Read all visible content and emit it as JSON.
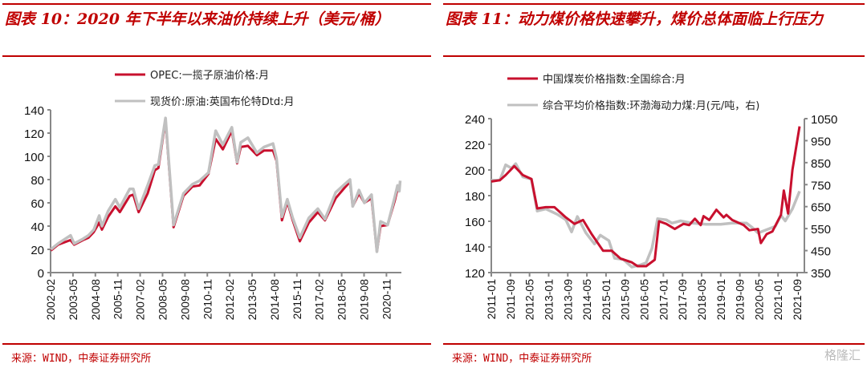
{
  "left": {
    "title": "图表 10：2020 年下半年以来油价持续上升（美元/桶）",
    "source": "来源：WIND，中泰证券研究所"
  },
  "right": {
    "title": "图表 11：动力煤价格快速攀升，煤价总体面临上行压力",
    "source": "来源：WIND，中泰证券研究所",
    "watermark": "格隆汇"
  },
  "colors": {
    "red": "#c8102e",
    "gray": "#c0c0c0",
    "accent": "#c00000"
  },
  "chart_data": [
    {
      "type": "line",
      "title": "2020 年下半年以来油价持续上升（美元/桶）",
      "ylim": [
        0,
        140
      ],
      "yticks": [
        0,
        20,
        40,
        60,
        80,
        100,
        120,
        140
      ],
      "xlim": [
        2002.083,
        2021.667
      ],
      "xticks": [
        "2002-02",
        "2003-05",
        "2004-08",
        "2005-11",
        "2007-02",
        "2008-05",
        "2009-08",
        "2010-11",
        "2012-02",
        "2013-05",
        "2014-08",
        "2015-11",
        "2017-02",
        "2018-05",
        "2019-08",
        "2020-11"
      ],
      "legend": [
        "OPEC:一揽子原油价格:月",
        "现货价:原油:英国布伦特Dtd:月"
      ],
      "series": [
        {
          "name": "OPEC:一揽子原油价格:月",
          "color": "red",
          "axis": "left",
          "points": [
            [
              2002.1,
              19
            ],
            [
              2002.5,
              24
            ],
            [
              2003.2,
              28
            ],
            [
              2003.4,
              24
            ],
            [
              2003.9,
              28
            ],
            [
              2004.2,
              30
            ],
            [
              2004.5,
              35
            ],
            [
              2004.8,
              43
            ],
            [
              2004.95,
              37
            ],
            [
              2005.3,
              48
            ],
            [
              2005.7,
              57
            ],
            [
              2005.95,
              52
            ],
            [
              2006.5,
              66
            ],
            [
              2006.7,
              67
            ],
            [
              2007.0,
              52
            ],
            [
              2007.5,
              68
            ],
            [
              2007.9,
              88
            ],
            [
              2008.1,
              90
            ],
            [
              2008.5,
              131
            ],
            [
              2008.95,
              39
            ],
            [
              2009.5,
              66
            ],
            [
              2010.0,
              74
            ],
            [
              2010.4,
              75
            ],
            [
              2010.9,
              85
            ],
            [
              2011.3,
              115
            ],
            [
              2011.7,
              106
            ],
            [
              2012.2,
              122
            ],
            [
              2012.5,
              94
            ],
            [
              2012.7,
              108
            ],
            [
              2013.1,
              109
            ],
            [
              2013.6,
              101
            ],
            [
              2014.0,
              105
            ],
            [
              2014.5,
              105
            ],
            [
              2014.7,
              96
            ],
            [
              2015.0,
              45
            ],
            [
              2015.3,
              61
            ],
            [
              2015.6,
              45
            ],
            [
              2016.0,
              27
            ],
            [
              2016.5,
              43
            ],
            [
              2017.0,
              52
            ],
            [
              2017.4,
              45
            ],
            [
              2018.0,
              64
            ],
            [
              2018.5,
              73
            ],
            [
              2018.8,
              78
            ],
            [
              2018.95,
              57
            ],
            [
              2019.3,
              68
            ],
            [
              2019.6,
              60
            ],
            [
              2020.0,
              64
            ],
            [
              2020.3,
              18
            ],
            [
              2020.5,
              40
            ],
            [
              2020.9,
              41
            ],
            [
              2021.3,
              62
            ],
            [
              2021.45,
              72
            ],
            [
              2021.55,
              71
            ]
          ]
        },
        {
          "name": "现货价:原油:英国布伦特Dtd:月",
          "color": "gray",
          "axis": "left",
          "points": [
            [
              2002.1,
              20
            ],
            [
              2002.5,
              25
            ],
            [
              2003.2,
              32
            ],
            [
              2003.4,
              25
            ],
            [
              2003.9,
              29
            ],
            [
              2004.2,
              32
            ],
            [
              2004.5,
              37
            ],
            [
              2004.8,
              49
            ],
            [
              2004.95,
              40
            ],
            [
              2005.3,
              53
            ],
            [
              2005.7,
              63
            ],
            [
              2005.95,
              56
            ],
            [
              2006.5,
              72
            ],
            [
              2006.7,
              72
            ],
            [
              2007.0,
              55
            ],
            [
              2007.5,
              75
            ],
            [
              2007.9,
              92
            ],
            [
              2008.1,
              93
            ],
            [
              2008.5,
              133
            ],
            [
              2008.95,
              41
            ],
            [
              2009.5,
              68
            ],
            [
              2010.0,
              76
            ],
            [
              2010.4,
              79
            ],
            [
              2010.9,
              86
            ],
            [
              2011.3,
              122
            ],
            [
              2011.7,
              110
            ],
            [
              2012.2,
              125
            ],
            [
              2012.5,
              95
            ],
            [
              2012.7,
              112
            ],
            [
              2013.1,
              116
            ],
            [
              2013.6,
              103
            ],
            [
              2014.0,
              108
            ],
            [
              2014.5,
              111
            ],
            [
              2014.7,
              98
            ],
            [
              2015.0,
              48
            ],
            [
              2015.3,
              63
            ],
            [
              2015.6,
              47
            ],
            [
              2016.0,
              30
            ],
            [
              2016.5,
              47
            ],
            [
              2017.0,
              55
            ],
            [
              2017.4,
              46
            ],
            [
              2018.0,
              69
            ],
            [
              2018.5,
              76
            ],
            [
              2018.8,
              80
            ],
            [
              2018.95,
              57
            ],
            [
              2019.3,
              71
            ],
            [
              2019.6,
              60
            ],
            [
              2020.0,
              67
            ],
            [
              2020.3,
              18
            ],
            [
              2020.5,
              44
            ],
            [
              2020.9,
              41
            ],
            [
              2021.3,
              65
            ],
            [
              2021.45,
              75
            ],
            [
              2021.55,
              70
            ],
            [
              2021.6,
              79
            ]
          ]
        }
      ]
    },
    {
      "type": "line",
      "title": "动力煤价格快速攀升，煤价总体面临上行压力",
      "ylim": [
        120,
        240
      ],
      "yticks": [
        120,
        140,
        160,
        180,
        200,
        220,
        240
      ],
      "y2lim": [
        350,
        1050
      ],
      "y2ticks": [
        350,
        450,
        550,
        650,
        750,
        850,
        950,
        1050
      ],
      "xlim": [
        2011.0,
        2021.917
      ],
      "xticks": [
        "2011-01",
        "2011-09",
        "2012-05",
        "2013-01",
        "2013-09",
        "2014-05",
        "2015-01",
        "2015-09",
        "2016-05",
        "2017-01",
        "2017-09",
        "2018-05",
        "2019-01",
        "2019-09",
        "2020-05",
        "2021-01",
        "2021-09"
      ],
      "legend": [
        "中国煤炭价格指数:全国综合:月",
        "综合平均价格指数:环渤海动力煤:月(元/吨，右)"
      ],
      "series": [
        {
          "name": "中国煤炭价格指数:全国综合:月",
          "color": "red",
          "axis": "left",
          "points": [
            [
              2011.0,
              191
            ],
            [
              2011.3,
              192
            ],
            [
              2011.5,
              196
            ],
            [
              2011.8,
              203
            ],
            [
              2012.1,
              196
            ],
            [
              2012.4,
              193
            ],
            [
              2012.6,
              170
            ],
            [
              2012.9,
              171
            ],
            [
              2013.2,
              171
            ],
            [
              2013.6,
              163
            ],
            [
              2013.9,
              158
            ],
            [
              2014.2,
              161
            ],
            [
              2014.5,
              150
            ],
            [
              2014.9,
              137
            ],
            [
              2015.2,
              137
            ],
            [
              2015.5,
              131
            ],
            [
              2015.9,
              128
            ],
            [
              2016.1,
              125
            ],
            [
              2016.4,
              125
            ],
            [
              2016.7,
              130
            ],
            [
              2016.85,
              160
            ],
            [
              2017.1,
              158
            ],
            [
              2017.4,
              154
            ],
            [
              2017.7,
              158
            ],
            [
              2017.9,
              157
            ],
            [
              2018.1,
              162
            ],
            [
              2018.3,
              157
            ],
            [
              2018.4,
              164
            ],
            [
              2018.6,
              161
            ],
            [
              2018.85,
              169
            ],
            [
              2019.1,
              163
            ],
            [
              2019.2,
              165
            ],
            [
              2019.4,
              161
            ],
            [
              2019.8,
              157
            ],
            [
              2020.0,
              153
            ],
            [
              2020.3,
              154
            ],
            [
              2020.4,
              143
            ],
            [
              2020.6,
              150
            ],
            [
              2020.8,
              152
            ],
            [
              2021.1,
              165
            ],
            [
              2021.2,
              184
            ],
            [
              2021.35,
              166
            ],
            [
              2021.5,
              200
            ],
            [
              2021.75,
              234
            ]
          ]
        },
        {
          "name": "综合平均价格指数:环渤海动力煤:月(元/吨，右)",
          "color": "gray",
          "axis": "right",
          "points": [
            [
              2011.0,
              770
            ],
            [
              2011.3,
              770
            ],
            [
              2011.5,
              840
            ],
            [
              2011.7,
              825
            ],
            [
              2011.85,
              845
            ],
            [
              2012.1,
              785
            ],
            [
              2012.4,
              775
            ],
            [
              2012.6,
              630
            ],
            [
              2012.9,
              640
            ],
            [
              2013.3,
              615
            ],
            [
              2013.6,
              590
            ],
            [
              2013.8,
              535
            ],
            [
              2014.0,
              605
            ],
            [
              2014.3,
              530
            ],
            [
              2014.6,
              480
            ],
            [
              2014.8,
              520
            ],
            [
              2015.1,
              495
            ],
            [
              2015.3,
              415
            ],
            [
              2015.6,
              410
            ],
            [
              2015.9,
              375
            ],
            [
              2016.2,
              385
            ],
            [
              2016.4,
              395
            ],
            [
              2016.6,
              460
            ],
            [
              2016.8,
              595
            ],
            [
              2017.1,
              590
            ],
            [
              2017.3,
              575
            ],
            [
              2017.6,
              585
            ],
            [
              2018.0,
              575
            ],
            [
              2018.5,
              570
            ],
            [
              2019.0,
              570
            ],
            [
              2019.4,
              575
            ],
            [
              2019.9,
              575
            ],
            [
              2020.1,
              555
            ],
            [
              2020.3,
              530
            ],
            [
              2020.6,
              545
            ],
            [
              2020.9,
              560
            ],
            [
              2021.1,
              610
            ],
            [
              2021.25,
              585
            ],
            [
              2021.5,
              640
            ],
            [
              2021.75,
              720
            ]
          ]
        }
      ]
    }
  ]
}
